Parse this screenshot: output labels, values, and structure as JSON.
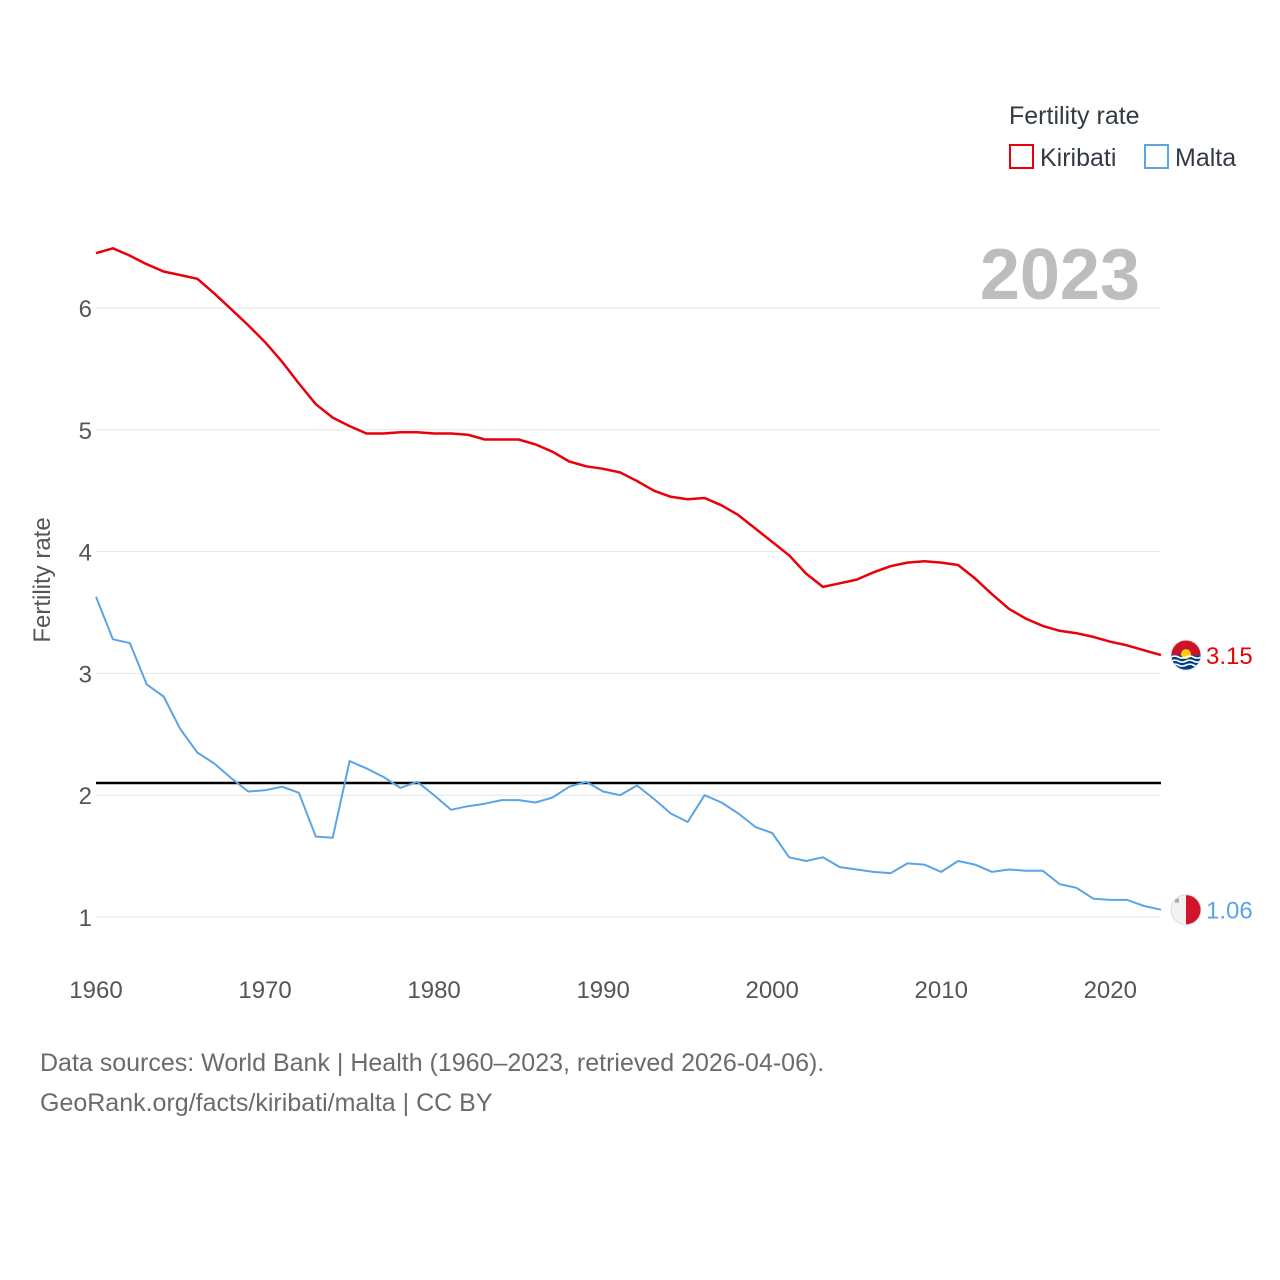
{
  "chart_data": {
    "type": "line",
    "title": "",
    "year_label": "2023",
    "xlabel": "",
    "ylabel": "Fertility rate",
    "xlim": [
      1960,
      2023
    ],
    "ylim": [
      0.5,
      6.8
    ],
    "x_ticks": [
      1960,
      1970,
      1980,
      1990,
      2000,
      2010,
      2020
    ],
    "y_ticks": [
      1,
      2,
      3,
      4,
      5,
      6
    ],
    "reference_line": 2.1,
    "legend": {
      "title": "Fertility rate",
      "position": "top-right"
    },
    "x": [
      1960,
      1961,
      1962,
      1963,
      1964,
      1965,
      1966,
      1967,
      1968,
      1969,
      1970,
      1971,
      1972,
      1973,
      1974,
      1975,
      1976,
      1977,
      1978,
      1979,
      1980,
      1981,
      1982,
      1983,
      1984,
      1985,
      1986,
      1987,
      1988,
      1989,
      1990,
      1991,
      1992,
      1993,
      1994,
      1995,
      1996,
      1997,
      1998,
      1999,
      2000,
      2001,
      2002,
      2003,
      2004,
      2005,
      2006,
      2007,
      2008,
      2009,
      2010,
      2011,
      2012,
      2013,
      2014,
      2015,
      2016,
      2017,
      2018,
      2019,
      2020,
      2021,
      2022,
      2023
    ],
    "series": [
      {
        "name": "Kiribati",
        "color": "#e8000b",
        "end_label": "3.15",
        "flag": "kiribati-flag",
        "values": [
          6.45,
          6.49,
          6.43,
          6.36,
          6.3,
          6.27,
          6.24,
          6.12,
          5.99,
          5.86,
          5.72,
          5.56,
          5.38,
          5.21,
          5.1,
          5.03,
          4.97,
          4.97,
          4.98,
          4.98,
          4.97,
          4.97,
          4.96,
          4.92,
          4.92,
          4.92,
          4.88,
          4.82,
          4.74,
          4.7,
          4.68,
          4.65,
          4.58,
          4.5,
          4.45,
          4.43,
          4.44,
          4.38,
          4.3,
          4.19,
          4.08,
          3.97,
          3.82,
          3.71,
          3.74,
          3.77,
          3.83,
          3.88,
          3.91,
          3.92,
          3.91,
          3.89,
          3.78,
          3.65,
          3.53,
          3.45,
          3.39,
          3.35,
          3.33,
          3.3,
          3.26,
          3.23,
          3.19,
          3.15
        ]
      },
      {
        "name": "Malta",
        "color": "#5ba4e5",
        "end_label": "1.06",
        "flag": "malta-flag",
        "values": [
          3.63,
          3.28,
          3.25,
          2.91,
          2.81,
          2.54,
          2.35,
          2.26,
          2.14,
          2.03,
          2.04,
          2.07,
          2.02,
          1.66,
          1.65,
          2.28,
          2.22,
          2.15,
          2.06,
          2.11,
          2.0,
          1.88,
          1.91,
          1.93,
          1.96,
          1.96,
          1.94,
          1.98,
          2.07,
          2.11,
          2.03,
          2.0,
          2.08,
          1.97,
          1.85,
          1.78,
          2.0,
          1.94,
          1.85,
          1.74,
          1.69,
          1.49,
          1.46,
          1.49,
          1.41,
          1.39,
          1.37,
          1.36,
          1.44,
          1.43,
          1.37,
          1.46,
          1.43,
          1.37,
          1.39,
          1.38,
          1.38,
          1.27,
          1.24,
          1.15,
          1.14,
          1.14,
          1.09,
          1.06
        ]
      }
    ]
  },
  "source": {
    "line1": "Data sources: World Bank | Health (1960–2023, retrieved 2026-04-06).",
    "line2": "GeoRank.org/facts/kiribati/malta | CC BY"
  }
}
